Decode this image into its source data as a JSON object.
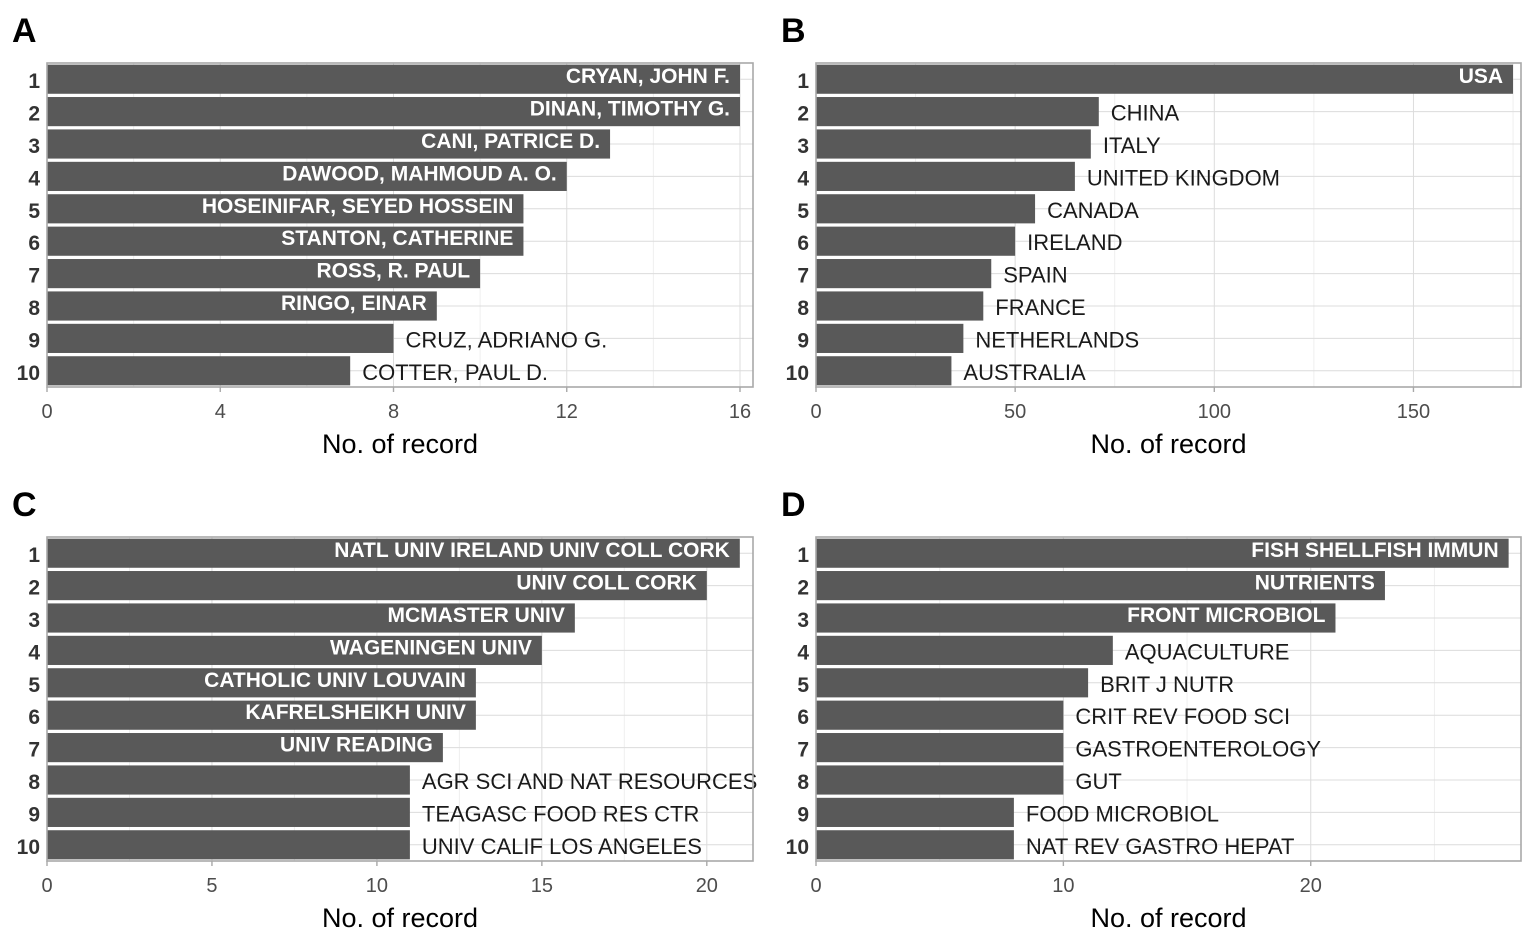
{
  "chart_data": [
    {
      "panel": "A",
      "type": "bar",
      "orientation": "horizontal",
      "xlabel": "No. of record",
      "xlim": [
        0,
        16.3
      ],
      "xticks": [
        0,
        4,
        8,
        12,
        16
      ],
      "ranks": [
        "1",
        "2",
        "3",
        "4",
        "5",
        "6",
        "7",
        "8",
        "9",
        "10"
      ],
      "categories": [
        "CRYAN, JOHN F.",
        "DINAN, TIMOTHY G.",
        "CANI, PATRICE D.",
        "DAWOOD, MAHMOUD A. O.",
        "HOSEINIFAR, SEYED HOSSEIN",
        "STANTON, CATHERINE",
        "ROSS, R. PAUL",
        "RINGO, EINAR",
        "CRUZ, ADRIANO G.",
        "COTTER, PAUL D."
      ],
      "values": [
        16,
        16,
        13,
        12,
        11,
        11,
        10,
        9,
        8,
        7
      ],
      "grid": true
    },
    {
      "panel": "B",
      "type": "bar",
      "orientation": "horizontal",
      "xlabel": "No. of record",
      "xlim": [
        0,
        177
      ],
      "xticks": [
        0,
        50,
        100,
        150
      ],
      "ranks": [
        "1",
        "2",
        "3",
        "4",
        "5",
        "6",
        "7",
        "8",
        "9",
        "10"
      ],
      "categories": [
        "USA",
        "CHINA",
        "ITALY",
        "UNITED KINGDOM",
        "CANADA",
        "IRELAND",
        "SPAIN",
        "FRANCE",
        "NETHERLANDS",
        "AUSTRALIA"
      ],
      "values": [
        175,
        71,
        69,
        65,
        55,
        50,
        44,
        42,
        37,
        34
      ],
      "grid": true
    },
    {
      "panel": "C",
      "type": "bar",
      "orientation": "horizontal",
      "xlabel": "No. of record",
      "xlim": [
        0,
        21.4
      ],
      "xticks": [
        0,
        5,
        10,
        15,
        20
      ],
      "ranks": [
        "1",
        "2",
        "3",
        "4",
        "5",
        "6",
        "7",
        "8",
        "9",
        "10"
      ],
      "categories": [
        "NATL UNIV IRELAND UNIV COLL CORK",
        "UNIV COLL CORK",
        "MCMASTER UNIV",
        "WAGENINGEN UNIV",
        "CATHOLIC UNIV LOUVAIN",
        "KAFRELSHEIKH UNIV",
        "UNIV READING",
        "AGR SCI AND NAT RESOURCES",
        "TEAGASC FOOD RES CTR",
        "UNIV CALIF LOS ANGELES"
      ],
      "values": [
        21,
        20,
        16,
        15,
        13,
        13,
        12,
        11,
        11,
        11
      ],
      "grid": true
    },
    {
      "panel": "D",
      "type": "bar",
      "orientation": "horizontal",
      "xlabel": "No. of record",
      "xlim": [
        0,
        28.5
      ],
      "xticks": [
        0,
        10,
        20
      ],
      "ranks": [
        "1",
        "2",
        "3",
        "4",
        "5",
        "6",
        "7",
        "8",
        "9",
        "10"
      ],
      "categories": [
        "FISH SHELLFISH IMMUN",
        "NUTRIENTS",
        "FRONT MICROBIOL",
        "AQUACULTURE",
        "BRIT J NUTR",
        "CRIT REV FOOD SCI",
        "GASTROENTEROLOGY",
        "GUT",
        "FOOD MICROBIOL",
        "NAT REV GASTRO HEPAT"
      ],
      "values": [
        28,
        23,
        21,
        12,
        11,
        10,
        10,
        10,
        8,
        8
      ],
      "grid": true
    }
  ]
}
